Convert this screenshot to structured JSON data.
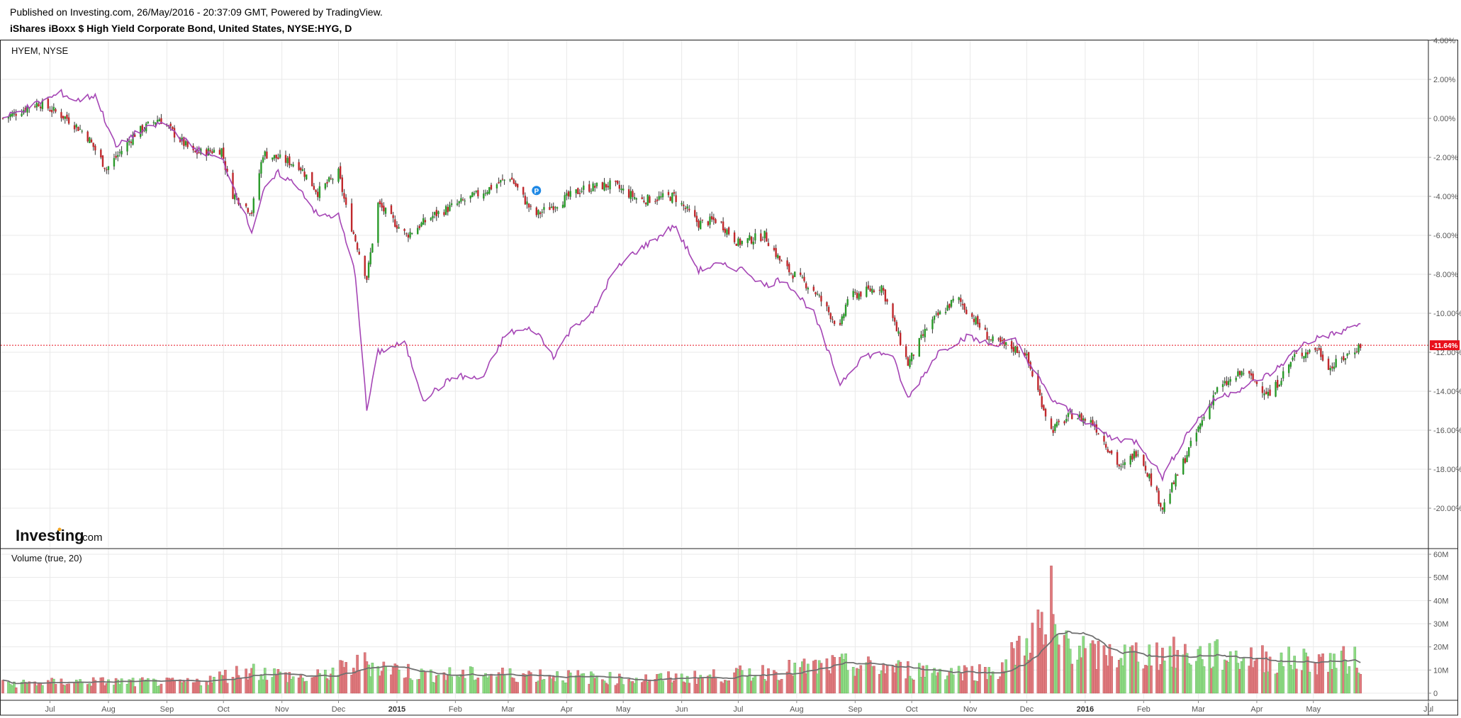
{
  "header": {
    "published": "Published on Investing.com, 26/May/2016 - 20:37:09 GMT, Powered by TradingView.",
    "title": "iShares iBoxx $ High Yield Corporate Bond, United States, NYSE:HYG, D"
  },
  "logo": {
    "main": "Investing",
    "suffix": ".com"
  },
  "colors": {
    "up": "#2a9a2a",
    "down": "#c0282c",
    "compare_line": "#a545b5",
    "vol_up": "#8fdc84",
    "vol_down": "#e07a7e",
    "vol_ma": "#707070",
    "price_line": "#e8101c",
    "grid": "#e9e9e9",
    "axis": "#888888"
  },
  "chart_data": [
    {
      "type": "candlestick",
      "pane_label": "HYEM, NYSE",
      "y_unit": "%",
      "yticks": [
        "4.00%",
        "2.00%",
        "0.00%",
        "-2.00%",
        "-4.00%",
        "-6.00%",
        "-8.00%",
        "-10.00%",
        "-12.00%",
        "-14.00%",
        "-16.00%",
        "-18.00%",
        "-20.00%"
      ],
      "ylim": [
        -22,
        4
      ],
      "xticks": [
        {
          "label": "Jul",
          "date": "2014-07-01",
          "bold": false
        },
        {
          "label": "Aug",
          "date": "2014-08-01",
          "bold": false
        },
        {
          "label": "Sep",
          "date": "2014-09-01",
          "bold": false
        },
        {
          "label": "Oct",
          "date": "2014-10-01",
          "bold": false
        },
        {
          "label": "Nov",
          "date": "2014-11-01",
          "bold": false
        },
        {
          "label": "Dec",
          "date": "2014-12-01",
          "bold": false
        },
        {
          "label": "2015",
          "date": "2015-01-01",
          "bold": true
        },
        {
          "label": "Feb",
          "date": "2015-02-01",
          "bold": false
        },
        {
          "label": "Mar",
          "date": "2015-03-01",
          "bold": false
        },
        {
          "label": "Apr",
          "date": "2015-04-01",
          "bold": false
        },
        {
          "label": "May",
          "date": "2015-05-01",
          "bold": false
        },
        {
          "label": "Jun",
          "date": "2015-06-01",
          "bold": false
        },
        {
          "label": "Jul",
          "date": "2015-07-01",
          "bold": false
        },
        {
          "label": "Aug",
          "date": "2015-08-01",
          "bold": false
        },
        {
          "label": "Sep",
          "date": "2015-09-01",
          "bold": false
        },
        {
          "label": "Oct",
          "date": "2015-10-01",
          "bold": false
        },
        {
          "label": "Nov",
          "date": "2015-11-01",
          "bold": false
        },
        {
          "label": "Dec",
          "date": "2015-12-01",
          "bold": false
        },
        {
          "label": "2016",
          "date": "2016-01-01",
          "bold": true
        },
        {
          "label": "Feb",
          "date": "2016-02-01",
          "bold": false
        },
        {
          "label": "Mar",
          "date": "2016-03-01",
          "bold": false
        },
        {
          "label": "Apr",
          "date": "2016-04-01",
          "bold": false
        },
        {
          "label": "May",
          "date": "2016-05-01",
          "bold": false
        },
        {
          "label": "Jul",
          "date": "2016-07-01",
          "bold": false
        }
      ],
      "x_range": [
        "2014-06-06",
        "2016-07-01"
      ],
      "series": [
        {
          "kind": "candles",
          "description_of_path": "approximate closing values (%) at time points",
          "anchors": [
            {
              "date": "2014-06-06",
              "value": 0.0
            },
            {
              "date": "2014-06-25",
              "value": 0.8
            },
            {
              "date": "2014-07-10",
              "value": 0.0
            },
            {
              "date": "2014-07-20",
              "value": -0.8
            },
            {
              "date": "2014-07-31",
              "value": -2.6
            },
            {
              "date": "2014-08-15",
              "value": -0.8
            },
            {
              "date": "2014-08-28",
              "value": 0.0
            },
            {
              "date": "2014-09-15",
              "value": -1.8
            },
            {
              "date": "2014-09-30",
              "value": -1.6
            },
            {
              "date": "2014-10-05",
              "value": -3.8
            },
            {
              "date": "2014-10-16",
              "value": -4.8
            },
            {
              "date": "2014-10-22",
              "value": -1.8
            },
            {
              "date": "2014-11-10",
              "value": -2.4
            },
            {
              "date": "2014-11-20",
              "value": -3.8
            },
            {
              "date": "2014-12-01",
              "value": -2.8
            },
            {
              "date": "2014-12-05",
              "value": -4.6
            },
            {
              "date": "2014-12-16",
              "value": -8.2
            },
            {
              "date": "2014-12-22",
              "value": -4.4
            },
            {
              "date": "2015-01-06",
              "value": -6.0
            },
            {
              "date": "2015-01-20",
              "value": -5.0
            },
            {
              "date": "2015-02-15",
              "value": -3.8
            },
            {
              "date": "2015-03-02",
              "value": -3.0
            },
            {
              "date": "2015-03-15",
              "value": -5.0
            },
            {
              "date": "2015-03-26",
              "value": -4.4
            },
            {
              "date": "2015-04-10",
              "value": -3.6
            },
            {
              "date": "2015-04-25",
              "value": -3.4
            },
            {
              "date": "2015-05-10",
              "value": -4.2
            },
            {
              "date": "2015-05-28",
              "value": -4.0
            },
            {
              "date": "2015-06-10",
              "value": -5.4
            },
            {
              "date": "2015-06-20",
              "value": -5.2
            },
            {
              "date": "2015-07-01",
              "value": -6.4
            },
            {
              "date": "2015-07-15",
              "value": -6.0
            },
            {
              "date": "2015-07-25",
              "value": -7.6
            },
            {
              "date": "2015-08-10",
              "value": -8.8
            },
            {
              "date": "2015-08-24",
              "value": -10.8
            },
            {
              "date": "2015-08-28",
              "value": -9.2
            },
            {
              "date": "2015-09-15",
              "value": -8.6
            },
            {
              "date": "2015-09-29",
              "value": -12.6
            },
            {
              "date": "2015-10-10",
              "value": -10.6
            },
            {
              "date": "2015-10-25",
              "value": -9.2
            },
            {
              "date": "2015-11-12",
              "value": -11.4
            },
            {
              "date": "2015-11-30",
              "value": -12.0
            },
            {
              "date": "2015-12-14",
              "value": -16.0
            },
            {
              "date": "2015-12-25",
              "value": -15.2
            },
            {
              "date": "2016-01-05",
              "value": -15.6
            },
            {
              "date": "2016-01-20",
              "value": -18.0
            },
            {
              "date": "2016-01-29",
              "value": -17.0
            },
            {
              "date": "2016-02-11",
              "value": -20.0
            },
            {
              "date": "2016-02-25",
              "value": -17.0
            },
            {
              "date": "2016-03-10",
              "value": -14.0
            },
            {
              "date": "2016-03-25",
              "value": -13.0
            },
            {
              "date": "2016-04-08",
              "value": -14.2
            },
            {
              "date": "2016-04-21",
              "value": -12.2
            },
            {
              "date": "2016-05-03",
              "value": -11.8
            },
            {
              "date": "2016-05-10",
              "value": -12.8
            },
            {
              "date": "2016-05-26",
              "value": -11.64
            }
          ]
        },
        {
          "kind": "line",
          "description_of_path": "compare line (%)",
          "anchors": [
            {
              "date": "2014-06-06",
              "value": 0.0
            },
            {
              "date": "2014-06-25",
              "value": 0.8
            },
            {
              "date": "2014-07-07",
              "value": 1.3
            },
            {
              "date": "2014-07-15",
              "value": 0.9
            },
            {
              "date": "2014-07-25",
              "value": 1.2
            },
            {
              "date": "2014-08-05",
              "value": -1.5
            },
            {
              "date": "2014-08-15",
              "value": -0.8
            },
            {
              "date": "2014-08-30",
              "value": -0.2
            },
            {
              "date": "2014-09-15",
              "value": -1.5
            },
            {
              "date": "2014-10-01",
              "value": -2.2
            },
            {
              "date": "2014-10-16",
              "value": -5.8
            },
            {
              "date": "2014-10-22",
              "value": -3.8
            },
            {
              "date": "2014-10-30",
              "value": -2.8
            },
            {
              "date": "2014-11-10",
              "value": -3.5
            },
            {
              "date": "2014-11-20",
              "value": -5.0
            },
            {
              "date": "2014-12-01",
              "value": -5.0
            },
            {
              "date": "2014-12-10",
              "value": -8.0
            },
            {
              "date": "2014-12-16",
              "value": -15.0
            },
            {
              "date": "2014-12-22",
              "value": -12.0
            },
            {
              "date": "2015-01-05",
              "value": -11.5
            },
            {
              "date": "2015-01-15",
              "value": -14.4
            },
            {
              "date": "2015-02-01",
              "value": -13.2
            },
            {
              "date": "2015-02-15",
              "value": -13.4
            },
            {
              "date": "2015-02-28",
              "value": -11.0
            },
            {
              "date": "2015-03-15",
              "value": -10.8
            },
            {
              "date": "2015-03-25",
              "value": -12.2
            },
            {
              "date": "2015-04-05",
              "value": -10.6
            },
            {
              "date": "2015-04-15",
              "value": -10.0
            },
            {
              "date": "2015-04-25",
              "value": -8.0
            },
            {
              "date": "2015-05-05",
              "value": -7.0
            },
            {
              "date": "2015-05-18",
              "value": -6.2
            },
            {
              "date": "2015-05-28",
              "value": -5.5
            },
            {
              "date": "2015-06-10",
              "value": -7.8
            },
            {
              "date": "2015-06-20",
              "value": -7.5
            },
            {
              "date": "2015-07-05",
              "value": -7.8
            },
            {
              "date": "2015-07-15",
              "value": -8.6
            },
            {
              "date": "2015-07-25",
              "value": -8.2
            },
            {
              "date": "2015-08-10",
              "value": -10.0
            },
            {
              "date": "2015-08-24",
              "value": -13.6
            },
            {
              "date": "2015-09-05",
              "value": -12.2
            },
            {
              "date": "2015-09-20",
              "value": -12.0
            },
            {
              "date": "2015-09-29",
              "value": -14.4
            },
            {
              "date": "2015-10-15",
              "value": -12.0
            },
            {
              "date": "2015-10-30",
              "value": -11.2
            },
            {
              "date": "2015-11-12",
              "value": -11.6
            },
            {
              "date": "2015-11-25",
              "value": -11.4
            },
            {
              "date": "2015-12-14",
              "value": -14.4
            },
            {
              "date": "2015-12-30",
              "value": -15.4
            },
            {
              "date": "2016-01-15",
              "value": -16.4
            },
            {
              "date": "2016-01-29",
              "value": -16.6
            },
            {
              "date": "2016-02-11",
              "value": -18.4
            },
            {
              "date": "2016-02-25",
              "value": -16.0
            },
            {
              "date": "2016-03-10",
              "value": -14.4
            },
            {
              "date": "2016-03-25",
              "value": -13.8
            },
            {
              "date": "2016-04-10",
              "value": -13.0
            },
            {
              "date": "2016-04-25",
              "value": -11.6
            },
            {
              "date": "2016-05-05",
              "value": -11.2
            },
            {
              "date": "2016-05-15",
              "value": -11.0
            },
            {
              "date": "2016-05-26",
              "value": -10.5
            }
          ]
        }
      ],
      "last_value_label": "-11.64%",
      "last_value": -11.64,
      "event_marker": {
        "label": "P",
        "date": "2015-03-16",
        "value": -3.7
      }
    },
    {
      "type": "bar",
      "pane_label": "Volume (true, 20)",
      "yticks": [
        "60M",
        "50M",
        "40M",
        "30M",
        "20M",
        "10M",
        "0"
      ],
      "ylim": [
        0,
        60000000
      ],
      "x_range": [
        "2014-06-06",
        "2016-07-01"
      ],
      "volume_profile": [
        {
          "date": "2014-06-06",
          "value": 4000000
        },
        {
          "date": "2014-07-20",
          "value": 5000000
        },
        {
          "date": "2014-09-15",
          "value": 4500000
        },
        {
          "date": "2014-10-15",
          "value": 10000000
        },
        {
          "date": "2014-11-15",
          "value": 6000000
        },
        {
          "date": "2014-12-15",
          "value": 13000000
        },
        {
          "date": "2015-01-15",
          "value": 8000000
        },
        {
          "date": "2015-03-15",
          "value": 8000000
        },
        {
          "date": "2015-05-01",
          "value": 6000000
        },
        {
          "date": "2015-06-15",
          "value": 7000000
        },
        {
          "date": "2015-08-24",
          "value": 12000000
        },
        {
          "date": "2015-10-01",
          "value": 10000000
        },
        {
          "date": "2015-11-15",
          "value": 9000000
        },
        {
          "date": "2015-12-10",
          "value": 30000000
        },
        {
          "date": "2016-01-05",
          "value": 16000000
        },
        {
          "date": "2016-02-15",
          "value": 17000000
        },
        {
          "date": "2016-03-15",
          "value": 16000000
        },
        {
          "date": "2016-04-15",
          "value": 14000000
        },
        {
          "date": "2016-05-26",
          "value": 14000000
        }
      ],
      "peak": {
        "date": "2015-12-14",
        "value": 55000000
      },
      "ma_period": 20
    }
  ]
}
